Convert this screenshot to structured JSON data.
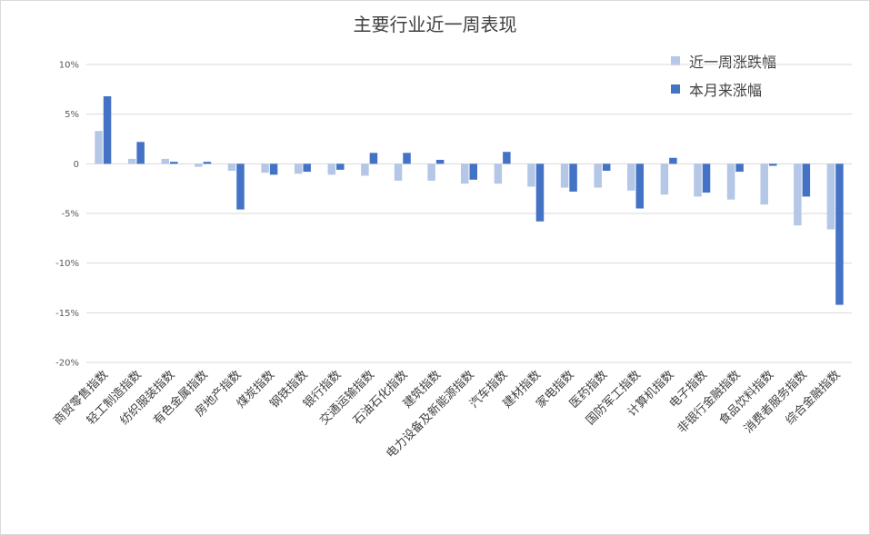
{
  "chart_data": {
    "type": "bar",
    "title": "主要行业近一周表现",
    "xlabel": "",
    "ylabel": "",
    "ylim": [
      -20,
      10
    ],
    "yticks": [
      10,
      5,
      0,
      -5,
      -10,
      -15,
      -20
    ],
    "ytick_labels": [
      "10%",
      "5%",
      "0",
      "-5%",
      "-10%",
      "-15%",
      "-20%"
    ],
    "grid": true,
    "legend_position": "top-right",
    "categories": [
      "商贸零售指数",
      "轻工制造指数",
      "纺织服装指数",
      "有色金属指数",
      "房地产指数",
      "煤炭指数",
      "钢铁指数",
      "银行指数",
      "交通运输指数",
      "石油石化指数",
      "建筑指数",
      "电力设备及新能源指数",
      "汽车指数",
      "建材指数",
      "家电指数",
      "医药指数",
      "国防军工指数",
      "计算机指数",
      "电子指数",
      "非银行金融指数",
      "食品饮料指数",
      "消费者服务指数",
      "综合金融指数"
    ],
    "series": [
      {
        "name": "近一周涨跌幅",
        "color": "#b4c7e7",
        "values": [
          3.3,
          0.5,
          0.5,
          -0.3,
          -0.7,
          -0.9,
          -1.0,
          -1.1,
          -1.2,
          -1.7,
          -1.7,
          -2.0,
          -2.0,
          -2.3,
          -2.4,
          -2.4,
          -2.7,
          -3.1,
          -3.3,
          -3.6,
          -4.1,
          -6.2,
          -6.6
        ]
      },
      {
        "name": "本月来涨幅",
        "color": "#4472c4",
        "values": [
          6.8,
          2.2,
          0.2,
          0.2,
          -4.6,
          -1.1,
          -0.8,
          -0.6,
          1.1,
          1.1,
          0.4,
          -1.6,
          1.2,
          -5.8,
          -2.8,
          -0.7,
          -4.5,
          0.6,
          -2.9,
          -0.8,
          -0.2,
          -3.3,
          -14.2
        ]
      }
    ]
  }
}
